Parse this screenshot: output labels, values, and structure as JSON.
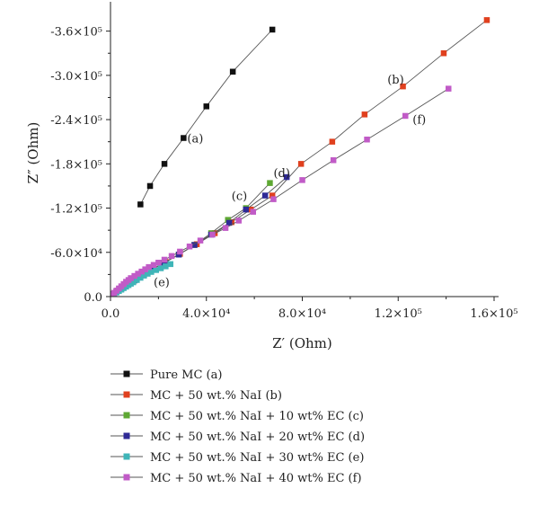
{
  "chart_data": {
    "type": "scatter",
    "xlabel": "Z′ (Ohm)",
    "ylabel": "Z″ (Ohm)",
    "xlim": [
      0,
      160000
    ],
    "ylim": [
      0,
      390000
    ],
    "x_ticks": [
      {
        "value": 0,
        "label": "0.0"
      },
      {
        "value": 40000,
        "label": "4.0×10⁴"
      },
      {
        "value": 80000,
        "label": "8.0×10⁴"
      },
      {
        "value": 120000,
        "label": "1.2×10⁵"
      },
      {
        "value": 160000,
        "label": "1.6×10⁵"
      }
    ],
    "y_ticks": [
      {
        "value": 0,
        "label": "0.0"
      },
      {
        "value": 60000,
        "label": "-6.0×10⁴"
      },
      {
        "value": 120000,
        "label": "-1.2×10⁵"
      },
      {
        "value": 180000,
        "label": "-1.8×10⁵"
      },
      {
        "value": 240000,
        "label": "-2.4×10⁵"
      },
      {
        "value": 300000,
        "label": "-3.0×10⁵"
      },
      {
        "value": 360000,
        "label": "-3.6×10⁵"
      }
    ],
    "grid": false,
    "legend_position": "bottom",
    "series": [
      {
        "name": "Pure MC (a)",
        "color": "#111111",
        "tag": "(a)",
        "x": [
          12500,
          16500,
          22500,
          30500,
          40000,
          51000,
          67500
        ],
        "y": [
          125000,
          150000,
          180000,
          215000,
          258000,
          305000,
          362000
        ]
      },
      {
        "name": "MC + 50 wt.% NaI (b)",
        "color": "#e0401e",
        "tag": "(b)",
        "x": [
          1500,
          3000,
          5000,
          7500,
          10500,
          14000,
          18000,
          23000,
          29000,
          36000,
          43500,
          50500,
          58500,
          67500,
          79500,
          92500,
          106000,
          122000,
          139000,
          157000
        ],
        "y": [
          4000,
          8000,
          12000,
          17000,
          23000,
          30000,
          38000,
          47000,
          58000,
          71000,
          86000,
          101000,
          118000,
          137000,
          180000,
          210000,
          247000,
          285000,
          330000,
          375000
        ]
      },
      {
        "name": "MC + 50 wt.% NaI + 10 wt% EC (c)",
        "color": "#5ea833",
        "tag": "(c)",
        "x": [
          1000,
          2500,
          4500,
          7000,
          10000,
          13500,
          17500,
          22500,
          28500,
          35000,
          42000,
          49000,
          56500,
          66500
        ],
        "y": [
          3000,
          7000,
          11000,
          16000,
          22000,
          29000,
          37000,
          46000,
          57000,
          70000,
          86000,
          104000,
          120000,
          154000
        ]
      },
      {
        "name": "MC + 50 wt.% NaI + 20 wt% EC (d)",
        "color": "#2f2a96",
        "tag": "(d)",
        "x": [
          1000,
          2500,
          4500,
          7000,
          10000,
          13500,
          17500,
          22500,
          28500,
          35000,
          42000,
          49500,
          56500,
          64500,
          73500
        ],
        "y": [
          3000,
          7000,
          11000,
          16000,
          22000,
          29000,
          37000,
          46000,
          57000,
          70000,
          84000,
          100000,
          118000,
          137000,
          162000
        ]
      },
      {
        "name": "MC + 50 wt.% NaI + 30 wt% EC (e)",
        "color": "#3fb5b8",
        "tag": "(e)",
        "x": [
          500,
          1500,
          2500,
          3500,
          4500,
          5500,
          6500,
          7500,
          8500,
          9500,
          11000,
          12500,
          14000,
          15500,
          17000,
          19000,
          21000,
          23000,
          25000
        ],
        "y": [
          1500,
          3500,
          5500,
          7500,
          9500,
          11500,
          13500,
          15500,
          17500,
          19500,
          22500,
          25500,
          28500,
          31000,
          33500,
          36000,
          38500,
          41000,
          44000
        ]
      },
      {
        "name": "MC + 50 wt.% NaI + 40 wt% EC (f)",
        "color": "#c15bc7",
        "tag": "(f)",
        "x": [
          500,
          1500,
          2500,
          3500,
          4500,
          5500,
          6500,
          7500,
          8500,
          10000,
          11500,
          13000,
          14500,
          16000,
          18000,
          20000,
          22500,
          25500,
          29000,
          33000,
          37500,
          42500,
          48000,
          53500,
          59500,
          68000,
          80000,
          93000,
          107000,
          123000,
          141000
        ],
        "y": [
          2000,
          5000,
          8000,
          11000,
          14000,
          17000,
          20000,
          22500,
          25000,
          28000,
          31000,
          34000,
          37000,
          40000,
          43000,
          46000,
          50000,
          55000,
          61000,
          68000,
          76000,
          84000,
          93000,
          103000,
          115000,
          132000,
          158000,
          185000,
          213000,
          245000,
          282000
        ]
      }
    ],
    "annotations": [
      {
        "text": "(a)",
        "x": 30500,
        "y": 215000
      },
      {
        "text": "(b)",
        "x": 114000,
        "y": 295000
      },
      {
        "text": "(c)",
        "x": 49000,
        "y": 137000
      },
      {
        "text": "(d)",
        "x": 66500,
        "y": 168000
      },
      {
        "text": "(e)",
        "x": 16500,
        "y": 20000
      },
      {
        "text": "(f)",
        "x": 124500,
        "y": 241000
      }
    ]
  }
}
